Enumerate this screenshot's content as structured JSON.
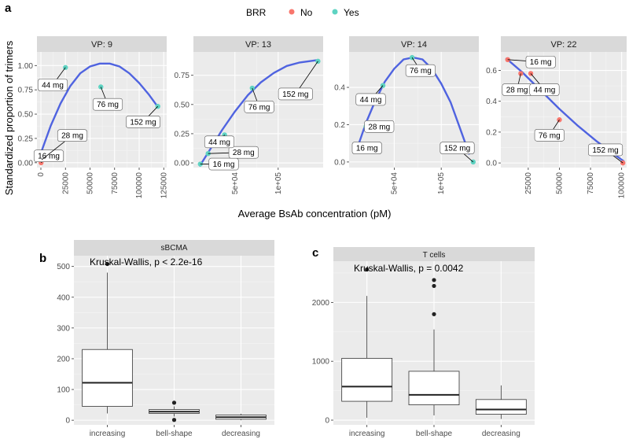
{
  "panel_labels": {
    "a": "a",
    "b": "b",
    "c": "c"
  },
  "colors": {
    "no": "#F8766D",
    "yes": "#5ED3C2",
    "curve": "#4F63E0",
    "panel_bg": "#EBEBEB",
    "strip_bg": "#D9D9D9",
    "grid": "#FFFFFF"
  },
  "chart_data": [
    {
      "type": "scatter",
      "panel": "a",
      "legend": {
        "title": "BRR",
        "position": "top",
        "entries": [
          {
            "key": "No",
            "label": "No"
          },
          {
            "key": "Yes",
            "label": "Yes"
          }
        ]
      },
      "xlabel": "Average BsAb concentration (pM)",
      "ylabel": "Standardized proportion of trimers",
      "facets": [
        {
          "title": "VP: 9",
          "xlim": [
            -4000,
            128000
          ],
          "ylim": [
            -0.05,
            1.14
          ],
          "xticks": [
            0,
            25000,
            50000,
            75000,
            100000,
            125000
          ],
          "xtick_labels": [
            "0",
            "25000",
            "50000",
            "75000",
            "100000",
            "125000"
          ],
          "yticks": [
            0,
            0.25,
            0.5,
            0.75,
            1.0
          ],
          "ytick_labels": [
            "0.00",
            "0.25",
            "0.50",
            "0.75",
            "1.00"
          ],
          "points": [
            {
              "x": 200,
              "y": 0.0,
              "label": "16 mg",
              "brr": "No",
              "lx": 8000,
              "ly": 0.07
            },
            {
              "x": 800,
              "y": 0.03,
              "label": "28 mg",
              "brr": "No",
              "lx": 32000,
              "ly": 0.28
            },
            {
              "x": 25000,
              "y": 0.98,
              "label": "44 mg",
              "brr": "Yes",
              "lx": 12000,
              "ly": 0.8
            },
            {
              "x": 61000,
              "y": 0.78,
              "label": "76 mg",
              "brr": "Yes",
              "lx": 68000,
              "ly": 0.6
            },
            {
              "x": 119000,
              "y": 0.58,
              "label": "152 mg",
              "brr": "Yes",
              "lx": 104000,
              "ly": 0.42
            }
          ],
          "curve": [
            [
              0,
              0.1
            ],
            [
              10000,
              0.38
            ],
            [
              20000,
              0.61
            ],
            [
              30000,
              0.79
            ],
            [
              40000,
              0.92
            ],
            [
              50000,
              0.99
            ],
            [
              60000,
              1.02
            ],
            [
              70000,
              1.02
            ],
            [
              80000,
              0.99
            ],
            [
              90000,
              0.92
            ],
            [
              100000,
              0.82
            ],
            [
              110000,
              0.7
            ],
            [
              120000,
              0.56
            ]
          ]
        },
        {
          "title": "VP: 13",
          "xlim": [
            2000,
            152000
          ],
          "ylim": [
            -0.04,
            0.95
          ],
          "xticks": [
            50000,
            100000
          ],
          "xtick_labels": [
            "5e+04",
            "1e+05"
          ],
          "yticks": [
            0,
            0.25,
            0.5,
            0.75
          ],
          "ytick_labels": [
            "0.00",
            "0.25",
            "0.50",
            "0.75"
          ],
          "points": [
            {
              "x": 10000,
              "y": -0.01,
              "label": "16 mg",
              "brr": "Yes",
              "lx": 37000,
              "ly": -0.01
            },
            {
              "x": 19000,
              "y": 0.08,
              "label": "28 mg",
              "brr": "Yes",
              "lx": 60000,
              "ly": 0.09
            },
            {
              "x": 38000,
              "y": 0.24,
              "label": "44 mg",
              "brr": "Yes",
              "lx": 32000,
              "ly": 0.18
            },
            {
              "x": 70000,
              "y": 0.64,
              "label": "76 mg",
              "brr": "Yes",
              "lx": 78000,
              "ly": 0.48
            },
            {
              "x": 146000,
              "y": 0.87,
              "label": "152 mg",
              "brr": "Yes",
              "lx": 120000,
              "ly": 0.59
            }
          ],
          "curve": [
            [
              9000,
              -0.03
            ],
            [
              20000,
              0.1
            ],
            [
              35000,
              0.28
            ],
            [
              50000,
              0.44
            ],
            [
              65000,
              0.58
            ],
            [
              80000,
              0.69
            ],
            [
              95000,
              0.77
            ],
            [
              110000,
              0.83
            ],
            [
              125000,
              0.86
            ],
            [
              145000,
              0.88
            ]
          ]
        },
        {
          "title": "VP: 14",
          "xlim": [
            2000,
            140000
          ],
          "ylim": [
            -0.03,
            0.59
          ],
          "xticks": [
            50000,
            100000
          ],
          "xtick_labels": [
            "5e+04",
            "1e+05"
          ],
          "yticks": [
            0,
            0.2,
            0.4
          ],
          "ytick_labels": [
            "0.0",
            "0.2",
            "0.4"
          ],
          "points": [
            {
              "x": 9000,
              "y": 0.06,
              "label": "16 mg",
              "brr": "Yes",
              "lx": 21000,
              "ly": 0.075
            },
            {
              "x": 20000,
              "y": 0.19,
              "label": "28 mg",
              "brr": "Yes",
              "lx": 34000,
              "ly": 0.19
            },
            {
              "x": 38000,
              "y": 0.41,
              "label": "44 mg",
              "brr": "Yes",
              "lx": 25000,
              "ly": 0.335
            },
            {
              "x": 69000,
              "y": 0.56,
              "label": "76 mg",
              "brr": "Yes",
              "lx": 78000,
              "ly": 0.49
            },
            {
              "x": 134000,
              "y": 0.0,
              "label": "152 mg",
              "brr": "Yes",
              "lx": 117000,
              "ly": 0.075
            }
          ],
          "curve": [
            [
              9000,
              0.05
            ],
            [
              20000,
              0.21
            ],
            [
              30000,
              0.33
            ],
            [
              40000,
              0.43
            ],
            [
              50000,
              0.5
            ],
            [
              60000,
              0.55
            ],
            [
              70000,
              0.56
            ],
            [
              80000,
              0.55
            ],
            [
              90000,
              0.5
            ],
            [
              100000,
              0.42
            ],
            [
              110000,
              0.32
            ],
            [
              120000,
              0.18
            ],
            [
              130000,
              0.04
            ]
          ]
        },
        {
          "title": "VP: 22",
          "xlim": [
            3000,
            104000
          ],
          "ylim": [
            -0.03,
            0.72
          ],
          "xticks": [
            25000,
            50000,
            75000,
            100000
          ],
          "xtick_labels": [
            "25000",
            "50000",
            "75000",
            "100000"
          ],
          "yticks": [
            0,
            0.2,
            0.4,
            0.6
          ],
          "ytick_labels": [
            "0.0",
            "0.2",
            "0.4",
            "0.6"
          ],
          "points": [
            {
              "x": 8500,
              "y": 0.67,
              "label": "16 mg",
              "brr": "No",
              "lx": 35000,
              "ly": 0.655
            },
            {
              "x": 19000,
              "y": 0.58,
              "label": "28 mg",
              "brr": "No",
              "lx": 16000,
              "ly": 0.475
            },
            {
              "x": 27000,
              "y": 0.58,
              "label": "44 mg",
              "brr": "No",
              "lx": 38000,
              "ly": 0.475
            },
            {
              "x": 50000,
              "y": 0.28,
              "label": "76 mg",
              "brr": "No",
              "lx": 42000,
              "ly": 0.18
            },
            {
              "x": 101000,
              "y": 0.0,
              "label": "152 mg",
              "brr": "No",
              "lx": 87000,
              "ly": 0.085
            }
          ],
          "curve": [
            [
              7000,
              0.68
            ],
            [
              20000,
              0.59
            ],
            [
              35000,
              0.47
            ],
            [
              50000,
              0.35
            ],
            [
              65000,
              0.24
            ],
            [
              80000,
              0.14
            ],
            [
              95000,
              0.05
            ],
            [
              102000,
              0.01
            ]
          ]
        }
      ]
    },
    {
      "type": "box",
      "panel": "b",
      "title": "sBCMA",
      "annotation": "Kruskal-Wallis, p < 2.2e-16",
      "categories": [
        "increasing",
        "bell-shape",
        "decreasing"
      ],
      "yticks": [
        0,
        100,
        200,
        300,
        400,
        500
      ],
      "ylim": [
        -15,
        535
      ],
      "boxes": [
        {
          "category": "increasing",
          "min": 22,
          "q1": 45,
          "median": 122,
          "q3": 230,
          "max": 480,
          "outliers": [
            508
          ]
        },
        {
          "category": "bell-shape",
          "min": 12,
          "q1": 22,
          "median": 28,
          "q3": 35,
          "max": 45,
          "outliers": [
            57,
            1
          ]
        },
        {
          "category": "decreasing",
          "min": 0,
          "q1": 3,
          "median": 10,
          "q3": 17,
          "max": 21,
          "outliers": []
        }
      ]
    },
    {
      "type": "box",
      "panel": "c",
      "title": "T cells",
      "annotation": "Kruskal-Wallis, p = 0.0042",
      "categories": [
        "increasing",
        "bell-shape",
        "decreasing"
      ],
      "yticks": [
        0,
        1000,
        2000
      ],
      "ylim": [
        -80,
        2700
      ],
      "boxes": [
        {
          "category": "increasing",
          "min": 40,
          "q1": 320,
          "median": 570,
          "q3": 1050,
          "max": 2110,
          "outliers": [
            2560
          ]
        },
        {
          "category": "bell-shape",
          "min": 80,
          "q1": 260,
          "median": 430,
          "q3": 830,
          "max": 1540,
          "outliers": [
            1800,
            2280,
            2380
          ]
        },
        {
          "category": "decreasing",
          "min": 20,
          "q1": 100,
          "median": 180,
          "q3": 350,
          "max": 590,
          "outliers": []
        }
      ]
    }
  ]
}
